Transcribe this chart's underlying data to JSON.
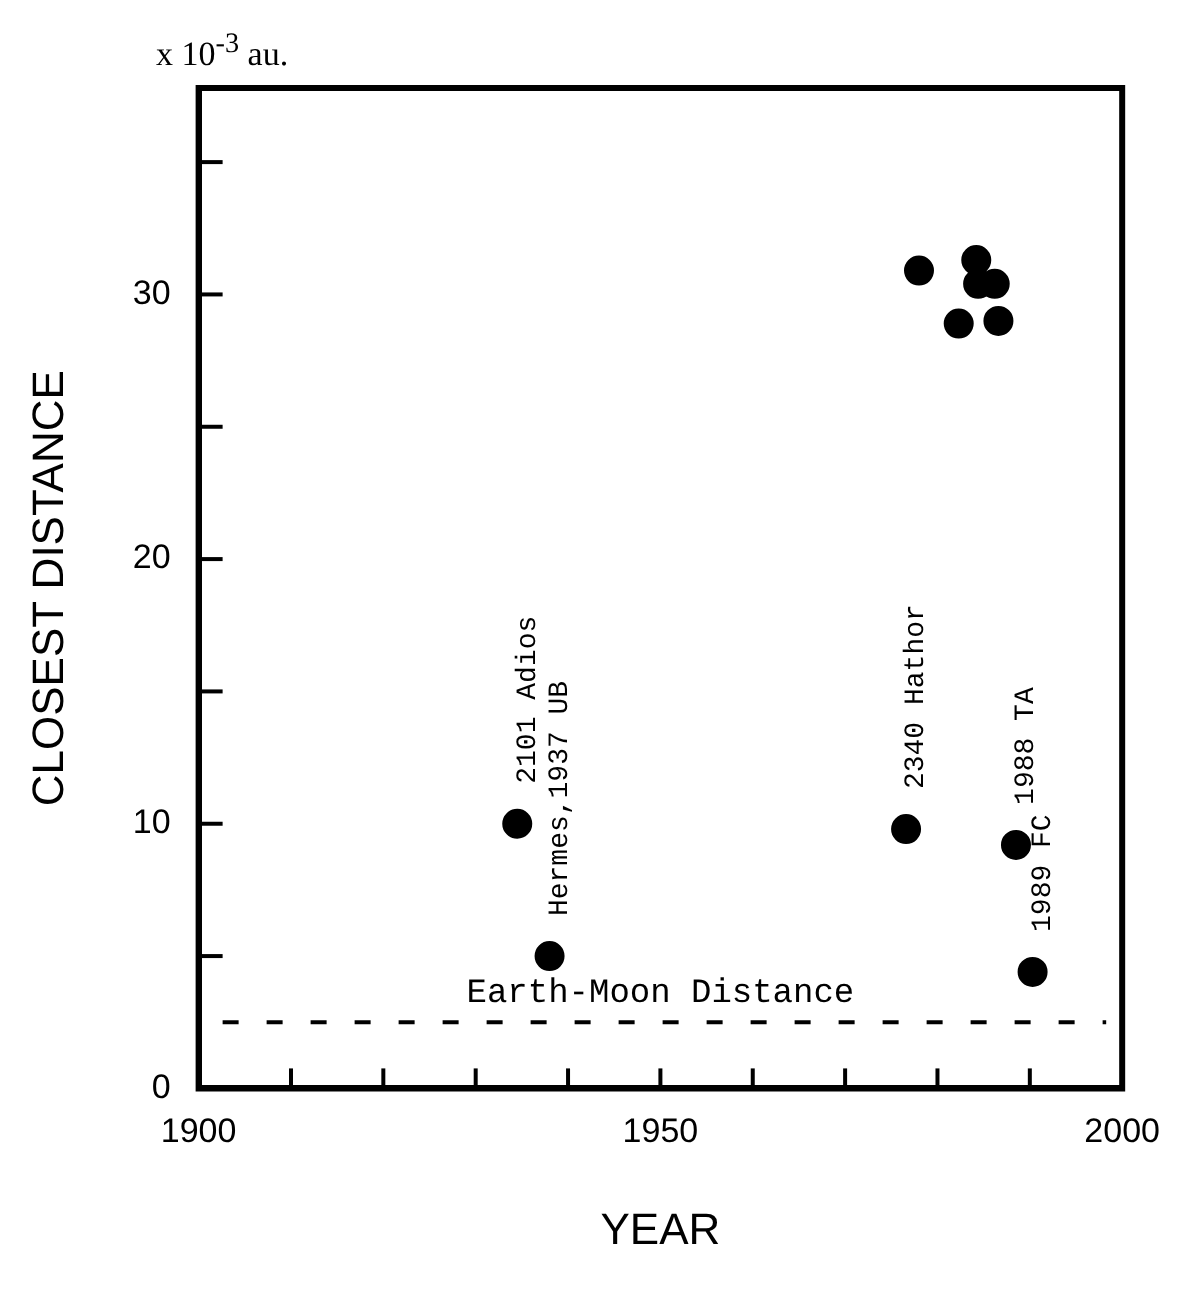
{
  "chart_data": {
    "type": "scatter",
    "xlabel": "YEAR",
    "ylabel": "CLOSEST DISTANCE",
    "x": [
      1934.5,
      1938,
      1976.6,
      1988.5,
      1990.3,
      1978,
      1984.2,
      1984.4,
      1986.2,
      1982.3,
      1986.6
    ],
    "values": [
      10,
      5,
      9.8,
      9.2,
      4.4,
      30.9,
      31.3,
      30.4,
      30.4,
      28.9,
      29
    ],
    "color": "#000000",
    "marker": "circle",
    "grid": false,
    "legend": false,
    "xlim": [
      1900,
      2000
    ],
    "xticks": [
      1900,
      {
        "value": 1910,
        "label": null
      },
      {
        "value": 1920,
        "label": null
      },
      {
        "value": 1930,
        "label": null
      },
      {
        "value": 1940,
        "label": null
      },
      1950,
      {
        "value": 1960,
        "label": null
      },
      {
        "value": 1970,
        "label": null
      },
      {
        "value": 1980,
        "label": null
      },
      {
        "value": 1990,
        "label": null
      },
      2000
    ],
    "ylim": [
      0,
      37.8
    ],
    "yticks": [
      0,
      {
        "value": 5,
        "label": null
      },
      10,
      {
        "value": 15,
        "label": null
      },
      20,
      {
        "value": 25,
        "label": null
      },
      30,
      {
        "value": 35,
        "label": null
      }
    ],
    "ref_lines": [
      {
        "axis": "y",
        "value": 2.5,
        "label": "Earth-Moon Distance",
        "color": "#000000",
        "line_style": "dashed"
      }
    ],
    "annotations": [
      "x 10$^{-3}$ au.",
      {
        "text": "2101 Adios",
        "x": 1934.5,
        "y": 10
      },
      {
        "text": "Hermes,1937 UB",
        "x": 1938,
        "y": 5
      },
      {
        "text": "2340 Hathor",
        "x": 1976.6,
        "y": 9.8
      },
      {
        "text": "1988 TA",
        "x": 1988.5,
        "y": 9.2
      },
      {
        "text": "1989 FC",
        "x": 1990.3,
        "y": 4.4
      }
    ]
  }
}
